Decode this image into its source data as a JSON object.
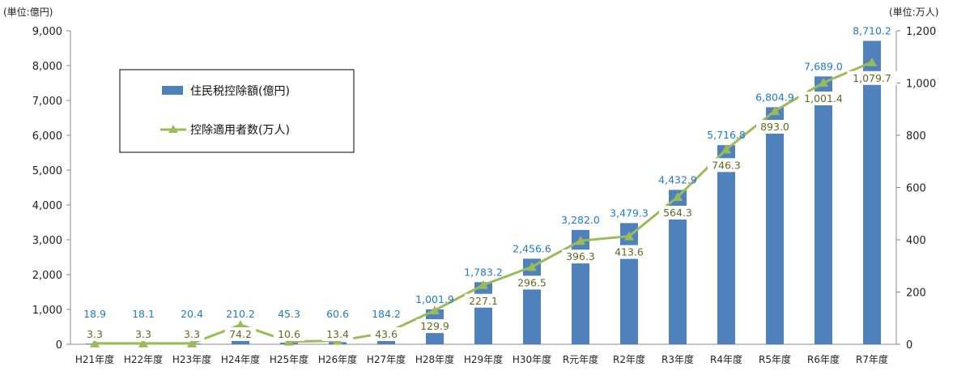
{
  "chart_data": {
    "type": "bar",
    "unit_left": "(単位:億円)",
    "unit_right": "(単位:万人)",
    "categories": [
      "H21年度",
      "H22年度",
      "H23年度",
      "H24年度",
      "H25年度",
      "H26年度",
      "H27年度",
      "H28年度",
      "H29年度",
      "H30年度",
      "R元年度",
      "R2年度",
      "R3年度",
      "R4年度",
      "R5年度",
      "R6年度",
      "R7年度"
    ],
    "series": [
      {
        "name": "住民税控除額(億円)",
        "kind": "bar",
        "axis": "left",
        "color": "#4F81BD",
        "label_color": "#1F7BC2",
        "values": [
          18.9,
          18.1,
          20.4,
          210.2,
          45.3,
          60.6,
          184.2,
          1001.9,
          1783.2,
          2456.6,
          3282.0,
          3479.3,
          4432.9,
          5716.8,
          6804.9,
          7689.0,
          8710.2
        ],
        "labels": [
          "18.9",
          "18.1",
          "20.4",
          "210.2",
          "45.3",
          "60.6",
          "184.2",
          "1,001.9",
          "1,783.2",
          "2,456.6",
          "3,282.0",
          "3,479.3",
          "4,432.9",
          "5,716.8",
          "6,804.9",
          "7,689.0",
          "8,710.2"
        ]
      },
      {
        "name": "控除適用者数(万人)",
        "kind": "line",
        "axis": "right",
        "color": "#9BBB59",
        "label_color": "#5E6B22",
        "values": [
          3.3,
          3.3,
          3.3,
          74.2,
          10.6,
          13.4,
          43.6,
          129.9,
          227.1,
          296.5,
          396.3,
          413.6,
          564.3,
          746.3,
          893.0,
          1001.4,
          1079.7
        ],
        "labels": [
          "3.3",
          "3.3",
          "3.3",
          "74.2",
          "10.6",
          "13.4",
          "43.6",
          "129.9",
          "227.1",
          "296.5",
          "396.3",
          "413.6",
          "564.3",
          "746.3",
          "893.0",
          "1,001.4",
          "1,079.7"
        ]
      }
    ],
    "ylim_left": [
      0,
      9000
    ],
    "ylim_right": [
      0,
      1200
    ],
    "yticks_left": [
      {
        "v": 0,
        "label": "0"
      },
      {
        "v": 1000,
        "label": "1,000"
      },
      {
        "v": 2000,
        "label": "2,000"
      },
      {
        "v": 3000,
        "label": "3,000"
      },
      {
        "v": 4000,
        "label": "4,000"
      },
      {
        "v": 5000,
        "label": "5,000"
      },
      {
        "v": 6000,
        "label": "6,000"
      },
      {
        "v": 7000,
        "label": "7,000"
      },
      {
        "v": 8000,
        "label": "8,000"
      },
      {
        "v": 9000,
        "label": "9,000"
      }
    ],
    "yticks_right": [
      {
        "v": 0,
        "label": "0"
      },
      {
        "v": 200,
        "label": "200"
      },
      {
        "v": 400,
        "label": "400"
      },
      {
        "v": 600,
        "label": "600"
      },
      {
        "v": 800,
        "label": "800"
      },
      {
        "v": 1000,
        "label": "1,000"
      },
      {
        "v": 1200,
        "label": "1,200"
      }
    ],
    "grid": false,
    "legend_position": "top-left"
  }
}
